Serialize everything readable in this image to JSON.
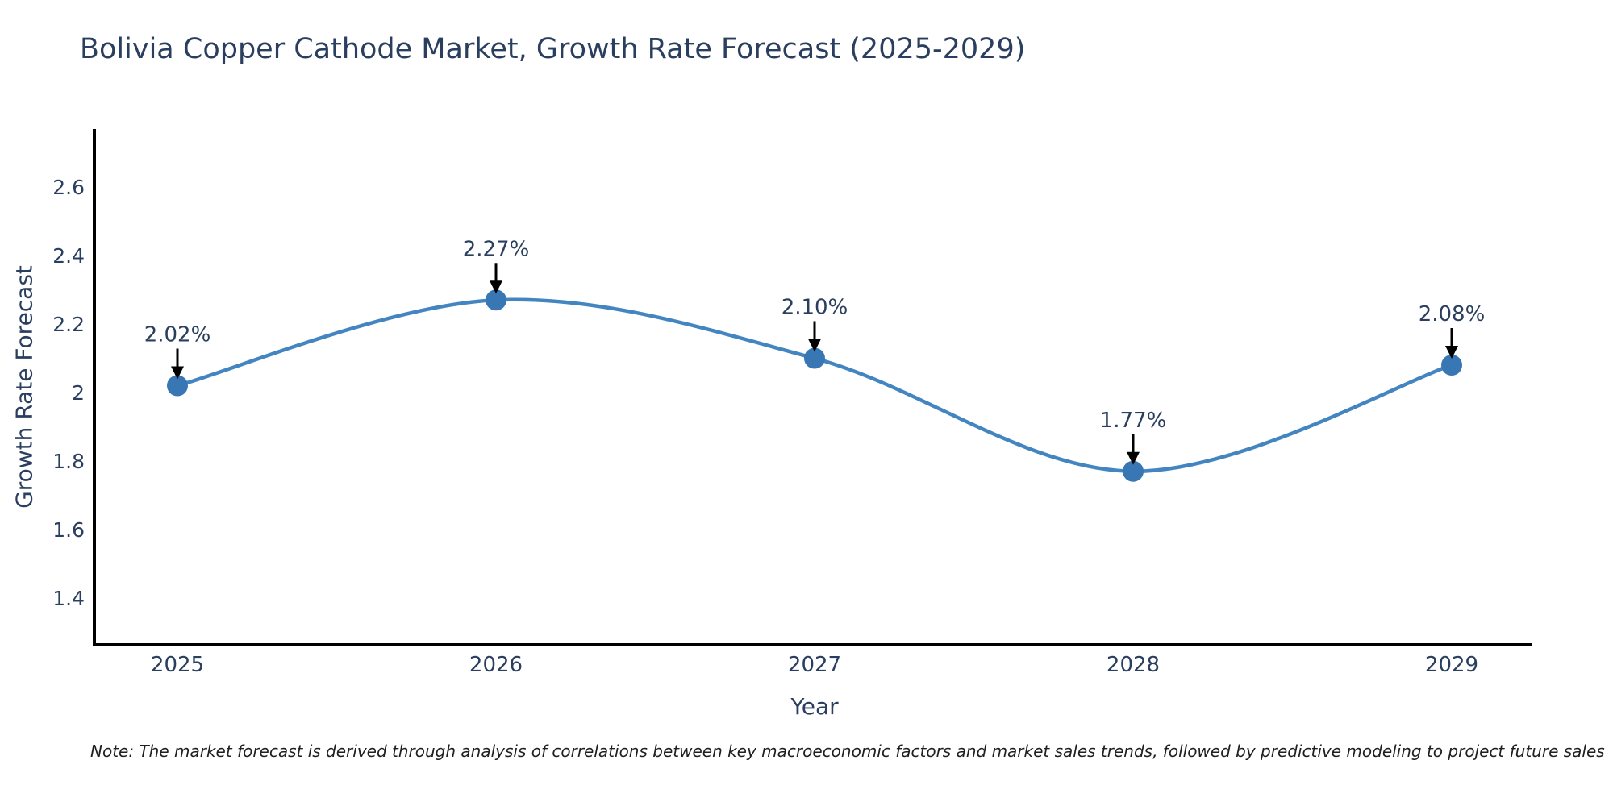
{
  "title": {
    "text": "Bolivia Copper Cathode Market, Growth Rate Forecast (2025-2029)",
    "color": "#2a3f5f"
  },
  "note": {
    "text": "Note: The market forecast is derived through analysis of correlations between key macroeconomic factors and market sales trends, followed by predictive modeling to project future sales"
  },
  "chart_data": {
    "type": "line",
    "title": "Bolivia Copper Cathode Market, Growth Rate Forecast (2025-2029)",
    "xlabel": "Year",
    "ylabel": "Growth Rate Forecast",
    "x": [
      2025,
      2026,
      2027,
      2028,
      2029
    ],
    "series": [
      {
        "name": "Growth Rate Forecast",
        "values": [
          2.02,
          2.27,
          2.1,
          1.77,
          2.08
        ]
      }
    ],
    "point_labels": [
      "2.02%",
      "2.27%",
      "2.10%",
      "1.77%",
      "2.08%"
    ],
    "xtick_labels": [
      "2025",
      "2026",
      "2027",
      "2028",
      "2029"
    ],
    "ytick_labels": [
      "2.6",
      "2.4",
      "2.2",
      "2",
      "1.8",
      "1.6",
      "1.4"
    ],
    "ytick_values": [
      2.6,
      2.4,
      2.2,
      2.0,
      1.8,
      1.6,
      1.4
    ],
    "ylim": [
      1.26,
      2.77
    ],
    "xlim": [
      2024.74,
      2029.25
    ],
    "line_shape": "spline",
    "grid": false,
    "legend": "none",
    "annotations": "black arrows pointing down from each percentage label to its data point",
    "colors": {
      "line": "#4285c0",
      "marker": "#3876b4",
      "axis": "#000000",
      "arrow": "#000000",
      "text": "#2a3f5f"
    }
  }
}
